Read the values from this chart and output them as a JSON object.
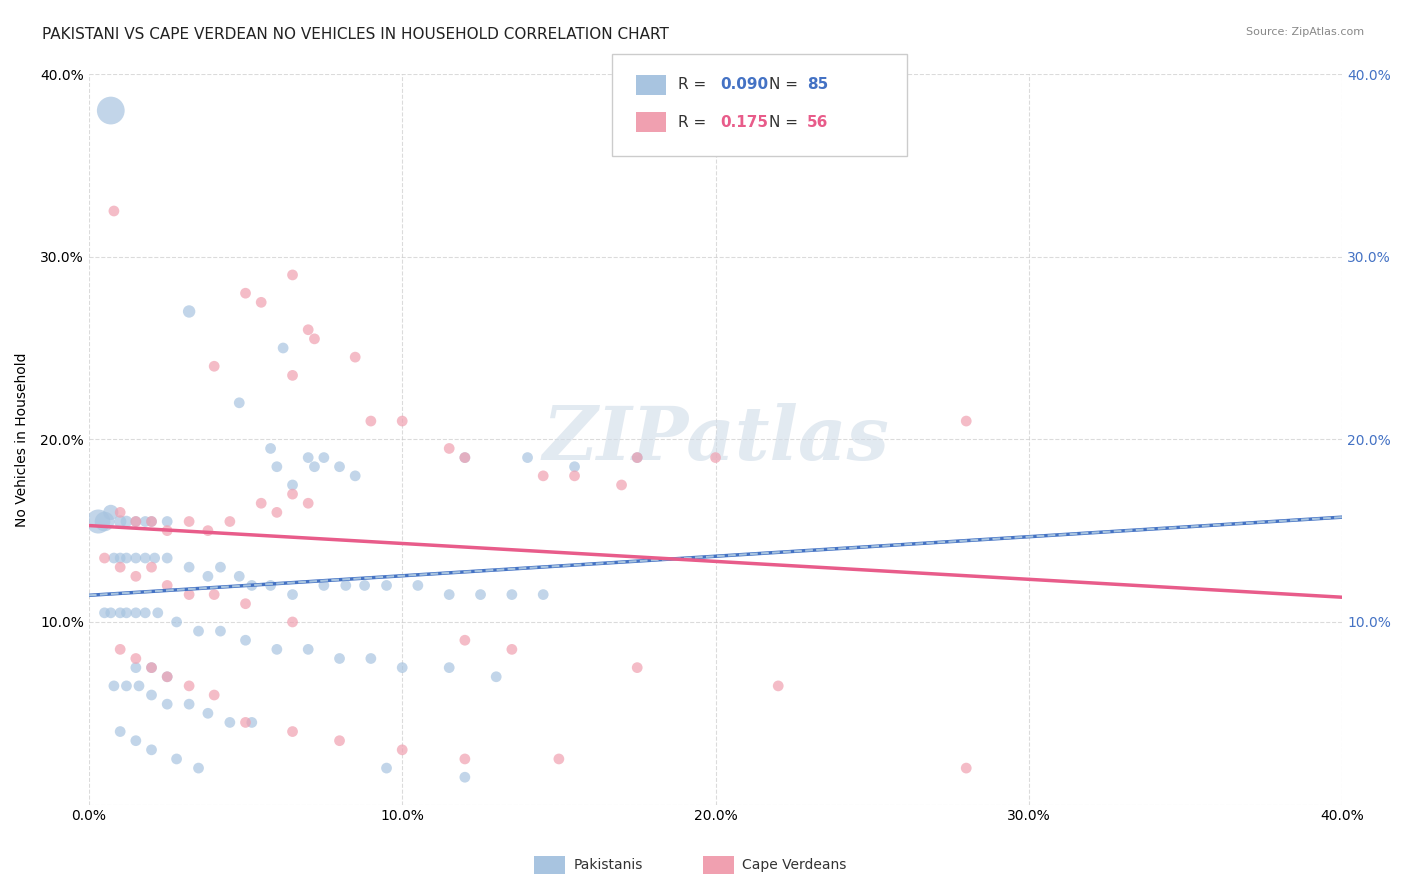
{
  "title": "PAKISTANI VS CAPE VERDEAN NO VEHICLES IN HOUSEHOLD CORRELATION CHART",
  "source": "Source: ZipAtlas.com",
  "ylabel": "No Vehicles in Household",
  "xlim": [
    0.0,
    0.4
  ],
  "ylim": [
    0.0,
    0.4
  ],
  "xtick_vals": [
    0.0,
    0.1,
    0.2,
    0.3,
    0.4
  ],
  "ytick_vals": [
    0.0,
    0.1,
    0.2,
    0.3,
    0.4
  ],
  "grid_color": "#cccccc",
  "background_color": "#ffffff",
  "pakistani_color": "#a8c4e0",
  "cape_verdean_color": "#f0a0b0",
  "pakistani_line_color": "#4472c4",
  "cape_verdean_line_color": "#e85c8a",
  "trend_dashed_color": "#a8c4e0",
  "watermark_color": "#d0dce8",
  "right_tick_color": "#4472c4",
  "title_fontsize": 11,
  "label_fontsize": 10,
  "tick_fontsize": 10,
  "pakistani_points": [
    [
      0.007,
      0.38
    ],
    [
      0.032,
      0.27
    ],
    [
      0.062,
      0.25
    ],
    [
      0.048,
      0.22
    ],
    [
      0.058,
      0.195
    ],
    [
      0.06,
      0.185
    ],
    [
      0.07,
      0.19
    ],
    [
      0.075,
      0.19
    ],
    [
      0.072,
      0.185
    ],
    [
      0.08,
      0.185
    ],
    [
      0.065,
      0.175
    ],
    [
      0.085,
      0.18
    ],
    [
      0.12,
      0.19
    ],
    [
      0.14,
      0.19
    ],
    [
      0.155,
      0.185
    ],
    [
      0.175,
      0.19
    ],
    [
      0.003,
      0.155
    ],
    [
      0.005,
      0.155
    ],
    [
      0.007,
      0.16
    ],
    [
      0.01,
      0.155
    ],
    [
      0.012,
      0.155
    ],
    [
      0.015,
      0.155
    ],
    [
      0.018,
      0.155
    ],
    [
      0.02,
      0.155
    ],
    [
      0.025,
      0.155
    ],
    [
      0.008,
      0.135
    ],
    [
      0.01,
      0.135
    ],
    [
      0.012,
      0.135
    ],
    [
      0.015,
      0.135
    ],
    [
      0.018,
      0.135
    ],
    [
      0.021,
      0.135
    ],
    [
      0.025,
      0.135
    ],
    [
      0.032,
      0.13
    ],
    [
      0.038,
      0.125
    ],
    [
      0.042,
      0.13
    ],
    [
      0.048,
      0.125
    ],
    [
      0.052,
      0.12
    ],
    [
      0.058,
      0.12
    ],
    [
      0.065,
      0.115
    ],
    [
      0.075,
      0.12
    ],
    [
      0.082,
      0.12
    ],
    [
      0.088,
      0.12
    ],
    [
      0.095,
      0.12
    ],
    [
      0.105,
      0.12
    ],
    [
      0.115,
      0.115
    ],
    [
      0.125,
      0.115
    ],
    [
      0.135,
      0.115
    ],
    [
      0.145,
      0.115
    ],
    [
      0.005,
      0.105
    ],
    [
      0.007,
      0.105
    ],
    [
      0.01,
      0.105
    ],
    [
      0.012,
      0.105
    ],
    [
      0.015,
      0.105
    ],
    [
      0.018,
      0.105
    ],
    [
      0.022,
      0.105
    ],
    [
      0.028,
      0.1
    ],
    [
      0.035,
      0.095
    ],
    [
      0.042,
      0.095
    ],
    [
      0.05,
      0.09
    ],
    [
      0.06,
      0.085
    ],
    [
      0.07,
      0.085
    ],
    [
      0.08,
      0.08
    ],
    [
      0.09,
      0.08
    ],
    [
      0.1,
      0.075
    ],
    [
      0.115,
      0.075
    ],
    [
      0.13,
      0.07
    ],
    [
      0.015,
      0.075
    ],
    [
      0.02,
      0.075
    ],
    [
      0.025,
      0.07
    ],
    [
      0.008,
      0.065
    ],
    [
      0.012,
      0.065
    ],
    [
      0.016,
      0.065
    ],
    [
      0.02,
      0.06
    ],
    [
      0.025,
      0.055
    ],
    [
      0.032,
      0.055
    ],
    [
      0.038,
      0.05
    ],
    [
      0.045,
      0.045
    ],
    [
      0.052,
      0.045
    ],
    [
      0.01,
      0.04
    ],
    [
      0.015,
      0.035
    ],
    [
      0.02,
      0.03
    ],
    [
      0.028,
      0.025
    ],
    [
      0.035,
      0.02
    ],
    [
      0.095,
      0.02
    ],
    [
      0.12,
      0.015
    ]
  ],
  "pakistani_sizes": [
    400,
    80,
    60,
    60,
    60,
    60,
    60,
    60,
    60,
    60,
    60,
    60,
    60,
    60,
    60,
    60,
    300,
    200,
    120,
    80,
    70,
    60,
    60,
    60,
    60,
    60,
    60,
    60,
    60,
    60,
    60,
    60,
    60,
    60,
    60,
    60,
    60,
    60,
    60,
    60,
    60,
    60,
    60,
    60,
    60,
    60,
    60,
    60,
    60,
    60,
    60,
    60,
    60,
    60,
    60,
    60,
    60,
    60,
    60,
    60,
    60,
    60,
    60,
    60,
    60,
    60,
    60,
    60,
    60,
    60,
    60,
    60,
    60,
    60,
    60,
    60,
    60,
    60,
    60,
    60,
    60,
    60,
    60,
    60,
    60
  ],
  "cape_verdean_points": [
    [
      0.008,
      0.325
    ],
    [
      0.05,
      0.28
    ],
    [
      0.055,
      0.275
    ],
    [
      0.065,
      0.29
    ],
    [
      0.07,
      0.26
    ],
    [
      0.072,
      0.255
    ],
    [
      0.04,
      0.24
    ],
    [
      0.065,
      0.235
    ],
    [
      0.085,
      0.245
    ],
    [
      0.09,
      0.21
    ],
    [
      0.1,
      0.21
    ],
    [
      0.115,
      0.195
    ],
    [
      0.12,
      0.19
    ],
    [
      0.175,
      0.19
    ],
    [
      0.2,
      0.19
    ],
    [
      0.28,
      0.21
    ],
    [
      0.01,
      0.16
    ],
    [
      0.015,
      0.155
    ],
    [
      0.02,
      0.155
    ],
    [
      0.025,
      0.15
    ],
    [
      0.032,
      0.155
    ],
    [
      0.038,
      0.15
    ],
    [
      0.045,
      0.155
    ],
    [
      0.055,
      0.165
    ],
    [
      0.06,
      0.16
    ],
    [
      0.065,
      0.17
    ],
    [
      0.07,
      0.165
    ],
    [
      0.145,
      0.18
    ],
    [
      0.155,
      0.18
    ],
    [
      0.17,
      0.175
    ],
    [
      0.005,
      0.135
    ],
    [
      0.01,
      0.13
    ],
    [
      0.015,
      0.125
    ],
    [
      0.02,
      0.13
    ],
    [
      0.025,
      0.12
    ],
    [
      0.032,
      0.115
    ],
    [
      0.04,
      0.115
    ],
    [
      0.05,
      0.11
    ],
    [
      0.065,
      0.1
    ],
    [
      0.12,
      0.09
    ],
    [
      0.135,
      0.085
    ],
    [
      0.175,
      0.075
    ],
    [
      0.01,
      0.085
    ],
    [
      0.015,
      0.08
    ],
    [
      0.02,
      0.075
    ],
    [
      0.025,
      0.07
    ],
    [
      0.032,
      0.065
    ],
    [
      0.04,
      0.06
    ],
    [
      0.05,
      0.045
    ],
    [
      0.065,
      0.04
    ],
    [
      0.08,
      0.035
    ],
    [
      0.1,
      0.03
    ],
    [
      0.12,
      0.025
    ],
    [
      0.15,
      0.025
    ],
    [
      0.22,
      0.065
    ],
    [
      0.28,
      0.02
    ]
  ],
  "cape_verdean_sizes": [
    60,
    60,
    60,
    60,
    60,
    60,
    60,
    60,
    60,
    60,
    60,
    60,
    60,
    60,
    60,
    60,
    60,
    60,
    60,
    60,
    60,
    60,
    60,
    60,
    60,
    60,
    60,
    60,
    60,
    60,
    60,
    60,
    60,
    60,
    60,
    60,
    60,
    60,
    60,
    60,
    60,
    60,
    60,
    60,
    60,
    60,
    60,
    60,
    60,
    60,
    60,
    60,
    60,
    60,
    60,
    60
  ]
}
